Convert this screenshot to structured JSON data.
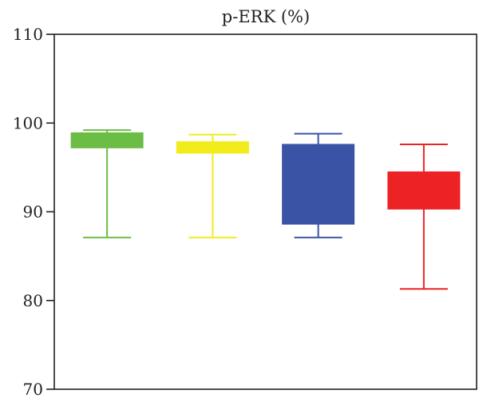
{
  "chart_data": {
    "type": "boxplot",
    "title": "p-ERK (%)",
    "xlabel": "",
    "ylabel": "",
    "ylim": [
      70,
      110
    ],
    "y_ticks": [
      70,
      80,
      90,
      100,
      110
    ],
    "grid": false,
    "legend": "none",
    "boxes": [
      {
        "color": "#6cbd45",
        "whisker_low": 87.1,
        "q1": 97.2,
        "q3": 98.9,
        "whisker_high": 99.2
      },
      {
        "color": "#f2ec1d",
        "whisker_low": 87.1,
        "q1": 96.6,
        "q3": 97.9,
        "whisker_high": 98.7
      },
      {
        "color": "#3a53a4",
        "whisker_low": 87.1,
        "q1": 88.6,
        "q3": 97.6,
        "whisker_high": 98.8
      },
      {
        "color": "#ed2224",
        "whisker_low": 81.3,
        "q1": 90.3,
        "q3": 94.5,
        "whisker_high": 97.6
      }
    ],
    "axis_color": "#231f20"
  }
}
